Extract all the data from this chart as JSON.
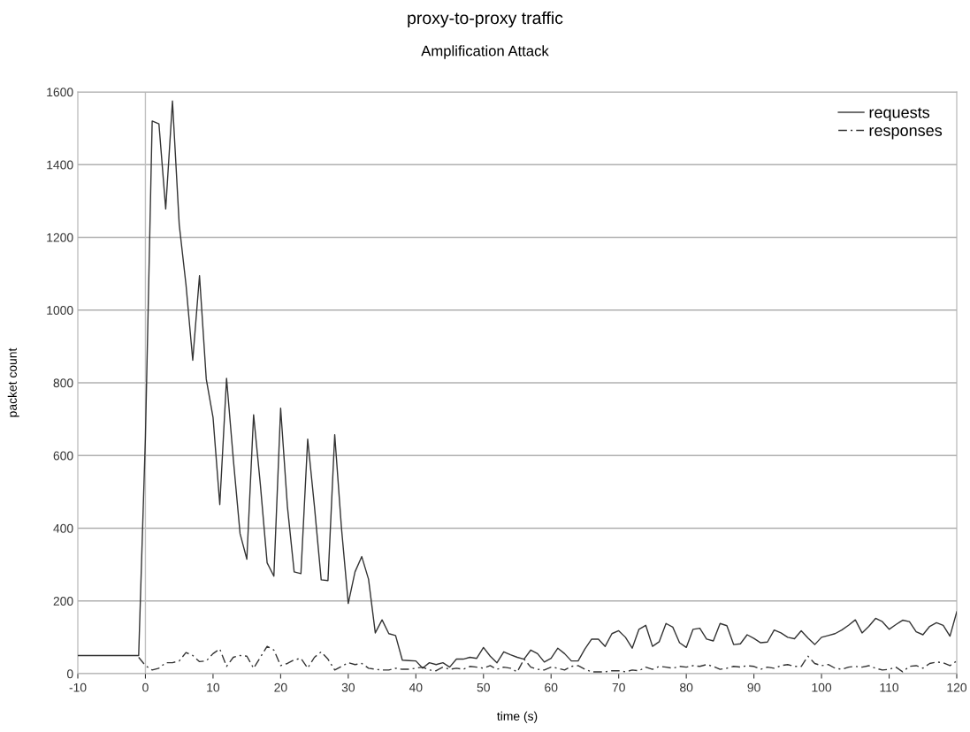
{
  "chart_data": {
    "type": "line",
    "title": "proxy-to-proxy traffic",
    "subtitle": "Amplification Attack",
    "xlabel": "time (s)",
    "ylabel": "packet count",
    "x": [
      -10,
      -9,
      -8,
      -7,
      -6,
      -5,
      -4,
      -3,
      -2,
      -1,
      0,
      1,
      2,
      3,
      4,
      5,
      6,
      7,
      8,
      9,
      10,
      11,
      12,
      13,
      14,
      15,
      16,
      17,
      18,
      19,
      20,
      21,
      22,
      23,
      24,
      25,
      26,
      27,
      28,
      29,
      30,
      31,
      32,
      33,
      34,
      35,
      36,
      37,
      38,
      39,
      40,
      41,
      42,
      43,
      44,
      45,
      46,
      47,
      48,
      49,
      50,
      51,
      52,
      53,
      54,
      55,
      56,
      57,
      58,
      59,
      60,
      61,
      62,
      63,
      64,
      65,
      66,
      67,
      68,
      69,
      70,
      71,
      72,
      73,
      74,
      75,
      76,
      77,
      78,
      79,
      80,
      81,
      82,
      83,
      84,
      85,
      86,
      87,
      88,
      89,
      90,
      91,
      92,
      93,
      94,
      95,
      96,
      97,
      98,
      99,
      100,
      101,
      102,
      103,
      104,
      105,
      106,
      107,
      108,
      109,
      110,
      111,
      112,
      113,
      114,
      115,
      116,
      117,
      118,
      119,
      120
    ],
    "series": [
      {
        "name": "requests",
        "color": "#333333",
        "line_style": "solid",
        "values": [
          50,
          50,
          50,
          50,
          50,
          50,
          50,
          50,
          50,
          50,
          650,
          1520,
          1512,
          1278,
          1575,
          1235,
          1070,
          862,
          1095,
          810,
          705,
          465,
          812,
          590,
          385,
          315,
          712,
          520,
          305,
          268,
          730,
          460,
          280,
          275,
          645,
          460,
          258,
          256,
          657,
          400,
          193,
          280,
          322,
          260,
          112,
          148,
          110,
          105,
          37,
          36,
          35,
          15,
          30,
          25,
          30,
          18,
          40,
          40,
          45,
          42,
          72,
          48,
          30,
          60,
          52,
          45,
          40,
          65,
          55,
          32,
          42,
          70,
          55,
          35,
          35,
          68,
          95,
          95,
          75,
          110,
          118,
          100,
          70,
          122,
          133,
          75,
          88,
          138,
          128,
          85,
          72,
          122,
          125,
          95,
          90,
          138,
          132,
          80,
          82,
          107,
          97,
          85,
          87,
          120,
          112,
          100,
          96,
          118,
          98,
          80,
          100,
          105,
          110,
          120,
          133,
          148,
          112,
          130,
          152,
          143,
          122,
          135,
          147,
          143,
          115,
          107,
          130,
          140,
          133,
          103,
          170
        ]
      },
      {
        "name": "responses",
        "color": "#333333",
        "line_style": "dashed",
        "values": [
          null,
          null,
          null,
          null,
          null,
          null,
          null,
          null,
          null,
          45,
          22,
          10,
          15,
          30,
          30,
          35,
          58,
          50,
          33,
          35,
          55,
          68,
          20,
          45,
          50,
          48,
          15,
          45,
          75,
          65,
          22,
          28,
          38,
          42,
          15,
          45,
          60,
          40,
          10,
          20,
          30,
          25,
          28,
          15,
          12,
          10,
          10,
          15,
          12,
          12,
          15,
          18,
          10,
          8,
          18,
          12,
          15,
          12,
          20,
          18,
          15,
          22,
          12,
          18,
          15,
          5,
          40,
          18,
          12,
          10,
          18,
          15,
          10,
          20,
          22,
          12,
          5,
          5,
          5,
          8,
          8,
          5,
          10,
          8,
          18,
          12,
          20,
          18,
          15,
          20,
          18,
          22,
          20,
          25,
          20,
          12,
          15,
          20,
          18,
          22,
          20,
          12,
          18,
          15,
          22,
          25,
          20,
          20,
          48,
          28,
          22,
          25,
          15,
          12,
          18,
          20,
          18,
          22,
          15,
          10,
          12,
          18,
          5,
          20,
          22,
          15,
          28,
          32,
          30,
          22,
          35
        ]
      }
    ],
    "xlim": [
      -10,
      120
    ],
    "xticks": [
      -10,
      0,
      10,
      20,
      30,
      40,
      50,
      60,
      70,
      80,
      90,
      100,
      110,
      120
    ],
    "ylim": [
      0,
      1600
    ],
    "yticks": [
      0,
      200,
      400,
      600,
      800,
      1000,
      1200,
      1400,
      1600
    ],
    "ref_lines": [
      {
        "axis": "x",
        "value": 0,
        "color": "#c0c0c0"
      }
    ],
    "grid": "y",
    "legend": "top right",
    "marker": "none"
  }
}
